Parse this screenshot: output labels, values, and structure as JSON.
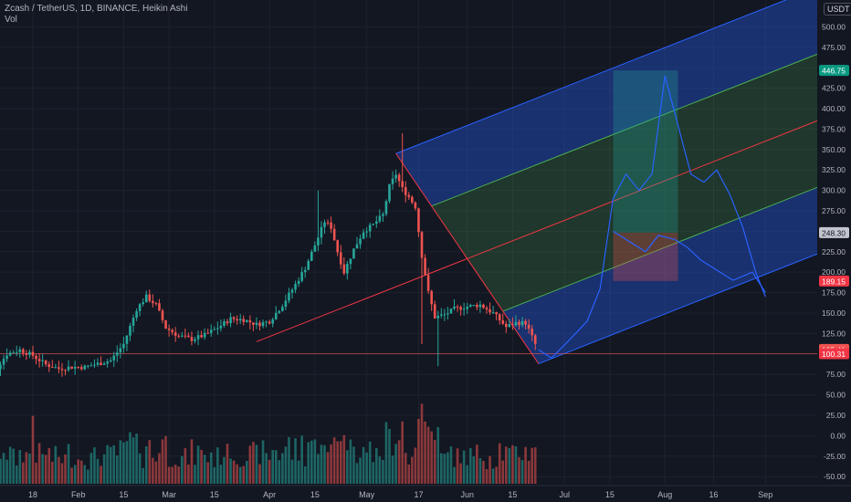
{
  "header": {
    "title": "Zcash / TetherUS, 1D, BINANCE, Heikin Ashi",
    "vol_label": "Vol"
  },
  "axis": {
    "currency": "USDT",
    "price_ticks": [
      "500.00",
      "475.00",
      "450.00",
      "425.00",
      "400.00",
      "375.00",
      "350.00",
      "325.00",
      "300.00",
      "275.00",
      "250.00",
      "225.00",
      "200.00",
      "175.00",
      "150.00",
      "125.00",
      "100.00",
      "75.00",
      "50.00",
      "25.00",
      "0.00",
      "-25.00",
      "-50.00"
    ],
    "time_ticks": [
      "18",
      "Feb",
      "15",
      "Mar",
      "15",
      "Apr",
      "15",
      "May",
      "17",
      "Jun",
      "15",
      "Jul",
      "15",
      "Aug",
      "16",
      "Sep"
    ]
  },
  "price_labels": {
    "top": "446.75",
    "mid": "248.30",
    "stop": "189.15",
    "last": "105.41",
    "prev": "100.31"
  },
  "colors": {
    "up": "#26a69a",
    "down": "#ef5350",
    "fork": "#2962ff",
    "median": "#f23645",
    "green_zone": "#4caf50"
  },
  "chart_data": {
    "type": "candlestick",
    "title": "Zcash / TetherUS, 1D, BINANCE, Heikin Ashi",
    "ylim": [
      -55,
      520
    ],
    "close_path": [
      [
        "2021-01-02",
        67
      ],
      [
        "2021-01-06",
        78
      ],
      [
        "2021-01-10",
        100
      ],
      [
        "2021-01-14",
        105
      ],
      [
        "2021-01-18",
        98
      ],
      [
        "2021-01-22",
        87
      ],
      [
        "2021-01-26",
        82
      ],
      [
        "2021-01-30",
        84
      ],
      [
        "2021-02-03",
        84
      ],
      [
        "2021-02-07",
        88
      ],
      [
        "2021-02-11",
        92
      ],
      [
        "2021-02-15",
        112
      ],
      [
        "2021-02-19",
        155
      ],
      [
        "2021-02-22",
        170
      ],
      [
        "2021-02-25",
        160
      ],
      [
        "2021-02-28",
        132
      ],
      [
        "2021-03-04",
        122
      ],
      [
        "2021-03-08",
        118
      ],
      [
        "2021-03-12",
        123
      ],
      [
        "2021-03-16",
        132
      ],
      [
        "2021-03-20",
        143
      ],
      [
        "2021-03-24",
        142
      ],
      [
        "2021-03-28",
        136
      ],
      [
        "2021-04-01",
        140
      ],
      [
        "2021-04-05",
        160
      ],
      [
        "2021-04-09",
        185
      ],
      [
        "2021-04-12",
        205
      ],
      [
        "2021-04-15",
        233
      ],
      [
        "2021-04-18",
        262
      ],
      [
        "2021-04-20",
        255
      ],
      [
        "2021-04-22",
        225
      ],
      [
        "2021-04-24",
        200
      ],
      [
        "2021-04-27",
        228
      ],
      [
        "2021-04-30",
        250
      ],
      [
        "2021-05-03",
        258
      ],
      [
        "2021-05-06",
        270
      ],
      [
        "2021-05-08",
        305
      ],
      [
        "2021-05-10",
        320
      ],
      [
        "2021-05-12",
        302
      ],
      [
        "2021-05-14",
        292
      ],
      [
        "2021-05-16",
        280
      ],
      [
        "2021-05-18",
        220
      ],
      [
        "2021-05-20",
        175
      ],
      [
        "2021-05-22",
        145
      ],
      [
        "2021-05-25",
        148
      ],
      [
        "2021-05-28",
        155
      ],
      [
        "2021-06-01",
        158
      ],
      [
        "2021-06-05",
        160
      ],
      [
        "2021-06-09",
        150
      ],
      [
        "2021-06-13",
        133
      ],
      [
        "2021-06-16",
        138
      ],
      [
        "2021-06-19",
        138
      ],
      [
        "2021-06-22",
        112
      ],
      [
        "2021-06-23",
        105.41
      ]
    ],
    "projection": [
      [
        "2021-06-23",
        105
      ],
      [
        "2021-06-27",
        95
      ],
      [
        "2021-07-02",
        115
      ],
      [
        "2021-07-08",
        140
      ],
      [
        "2021-07-12",
        180
      ],
      [
        "2021-07-16",
        290
      ],
      [
        "2021-07-20",
        320
      ],
      [
        "2021-07-24",
        300
      ],
      [
        "2021-07-28",
        320
      ],
      [
        "2021-08-01",
        440
      ],
      [
        "2021-08-04",
        395
      ],
      [
        "2021-08-09",
        320
      ],
      [
        "2021-08-13",
        310
      ],
      [
        "2021-08-17",
        325
      ],
      [
        "2021-08-21",
        295
      ],
      [
        "2021-08-25",
        255
      ],
      [
        "2021-08-29",
        200
      ],
      [
        "2021-09-01",
        170
      ]
    ],
    "projection_2": [
      [
        "2021-07-16",
        250
      ],
      [
        "2021-07-22",
        235
      ],
      [
        "2021-07-26",
        225
      ],
      [
        "2021-07-30",
        245
      ],
      [
        "2021-08-04",
        240
      ],
      [
        "2021-08-08",
        230
      ],
      [
        "2021-08-12",
        215
      ],
      [
        "2021-08-16",
        205
      ],
      [
        "2021-08-22",
        190
      ],
      [
        "2021-08-28",
        200
      ],
      [
        "2021-09-01",
        175
      ]
    ],
    "pitchfork": {
      "pivot_a": [
        "2021-03-28",
        115
      ],
      "pivot_b": [
        "2021-05-10",
        345
      ],
      "pivot_c": [
        "2021-06-23",
        88
      ],
      "end": "2021-09-01"
    },
    "position": {
      "entry": 248.3,
      "target": 446.75,
      "stop": 189.15,
      "start": "2021-07-16",
      "end": "2021-08-05"
    },
    "horizontal_line": 100.31,
    "volume_note": "daily volume bars colored by candle direction"
  }
}
